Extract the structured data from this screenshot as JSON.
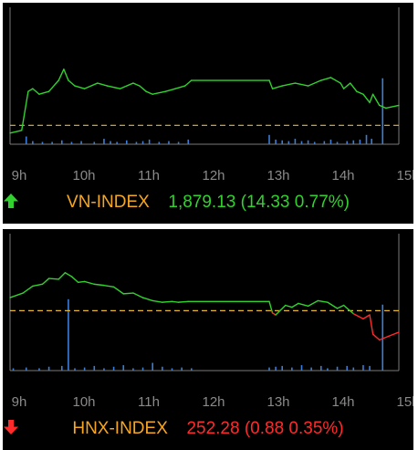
{
  "chart_data": [
    {
      "type": "line",
      "index_name": "VN-INDEX",
      "direction": "up",
      "value": "1,879.13",
      "change": "(14.33 0.77%)",
      "x_ticks": [
        "9h",
        "10h",
        "11h",
        "12h",
        "13h",
        "14h",
        "15h"
      ],
      "x_range_hours": [
        9,
        15
      ],
      "reference": 1864.8,
      "y_range": [
        1858,
        1905
      ],
      "series": [
        {
          "values": [
            [
              9.0,
              1862
            ],
            [
              9.18,
              1863
            ],
            [
              9.28,
              1877
            ],
            [
              9.35,
              1878
            ],
            [
              9.45,
              1876
            ],
            [
              9.6,
              1877
            ],
            [
              9.75,
              1881
            ],
            [
              9.83,
              1885
            ],
            [
              9.9,
              1881
            ],
            [
              10.0,
              1879
            ],
            [
              10.15,
              1878
            ],
            [
              10.35,
              1880
            ],
            [
              10.5,
              1879
            ],
            [
              10.7,
              1878
            ],
            [
              10.9,
              1880
            ],
            [
              11.0,
              1879
            ],
            [
              11.1,
              1877
            ],
            [
              11.2,
              1876
            ],
            [
              11.4,
              1877
            ],
            [
              11.55,
              1878
            ],
            [
              11.7,
              1879
            ],
            [
              11.8,
              1881
            ],
            [
              13.0,
              1881
            ],
            [
              13.05,
              1878
            ],
            [
              13.2,
              1879
            ],
            [
              13.4,
              1880
            ],
            [
              13.6,
              1879
            ],
            [
              13.8,
              1881
            ],
            [
              13.95,
              1882
            ],
            [
              14.1,
              1880
            ],
            [
              14.15,
              1878
            ],
            [
              14.25,
              1880
            ],
            [
              14.35,
              1877
            ],
            [
              14.45,
              1876
            ],
            [
              14.55,
              1873
            ],
            [
              14.6,
              1876
            ],
            [
              14.7,
              1872
            ],
            [
              14.8,
              1871
            ],
            [
              15.0,
              1872
            ]
          ]
        }
      ],
      "volume": [
        [
          9.25,
          10
        ],
        [
          9.35,
          4
        ],
        [
          9.5,
          3
        ],
        [
          9.65,
          3
        ],
        [
          9.8,
          5
        ],
        [
          9.95,
          3
        ],
        [
          10.1,
          4
        ],
        [
          10.3,
          3
        ],
        [
          10.45,
          7
        ],
        [
          10.55,
          4
        ],
        [
          10.65,
          3
        ],
        [
          10.8,
          5
        ],
        [
          10.95,
          3
        ],
        [
          11.05,
          4
        ],
        [
          11.15,
          6
        ],
        [
          11.3,
          3
        ],
        [
          11.45,
          4
        ],
        [
          11.6,
          3
        ],
        [
          11.75,
          6
        ],
        [
          13.0,
          12
        ],
        [
          13.1,
          6
        ],
        [
          13.2,
          5
        ],
        [
          13.3,
          4
        ],
        [
          13.4,
          7
        ],
        [
          13.5,
          4
        ],
        [
          13.6,
          5
        ],
        [
          13.7,
          3
        ],
        [
          13.85,
          4
        ],
        [
          13.95,
          6
        ],
        [
          14.05,
          3
        ],
        [
          14.2,
          4
        ],
        [
          14.3,
          5
        ],
        [
          14.4,
          6
        ],
        [
          14.5,
          12
        ],
        [
          14.58,
          7
        ],
        [
          14.75,
          85
        ]
      ],
      "colors": {
        "line": "#31d12e",
        "volume": "#3b7dd8",
        "reference": "#e8b830",
        "axis": "#7a7a7a"
      }
    },
    {
      "type": "line",
      "index_name": "HNX-INDEX",
      "direction": "down",
      "value": "252.28",
      "change": "(0.88 0.35%)",
      "x_ticks": [
        "9h",
        "10h",
        "11h",
        "12h",
        "13h",
        "14h",
        "15h"
      ],
      "x_range_hours": [
        9,
        15
      ],
      "reference": 253.16,
      "y_range": [
        251.6,
        255.0
      ],
      "series": [
        {
          "values": [
            [
              9.0,
              253.5
            ],
            [
              9.2,
              253.62
            ],
            [
              9.35,
              253.8
            ],
            [
              9.5,
              253.85
            ],
            [
              9.6,
              254.0
            ],
            [
              9.75,
              253.98
            ],
            [
              9.85,
              254.15
            ],
            [
              9.95,
              254.05
            ],
            [
              10.05,
              253.9
            ],
            [
              10.15,
              253.92
            ],
            [
              10.3,
              253.85
            ],
            [
              10.45,
              253.82
            ],
            [
              10.6,
              253.78
            ],
            [
              10.75,
              253.6
            ],
            [
              10.9,
              253.62
            ],
            [
              11.05,
              253.5
            ],
            [
              11.2,
              253.42
            ],
            [
              11.35,
              253.38
            ],
            [
              11.5,
              253.4
            ],
            [
              11.6,
              253.38
            ],
            [
              11.75,
              253.4
            ],
            [
              13.0,
              253.4
            ],
            [
              13.05,
              253.1
            ],
            [
              13.1,
              253.05
            ],
            [
              13.25,
              253.3
            ],
            [
              13.35,
              253.25
            ],
            [
              13.45,
              253.35
            ],
            [
              13.6,
              253.28
            ],
            [
              13.75,
              253.42
            ],
            [
              13.9,
              253.38
            ],
            [
              14.05,
              253.22
            ],
            [
              14.15,
              253.3
            ],
            [
              14.3,
              253.08
            ],
            [
              14.45,
              252.95
            ],
            [
              14.55,
              253.05
            ],
            [
              14.6,
              252.55
            ],
            [
              14.7,
              252.4
            ],
            [
              14.85,
              252.5
            ],
            [
              15.0,
              252.6
            ]
          ]
        }
      ],
      "volume": [
        [
          9.05,
          3
        ],
        [
          9.25,
          4
        ],
        [
          9.45,
          3
        ],
        [
          9.6,
          5
        ],
        [
          9.8,
          6
        ],
        [
          9.9,
          92
        ],
        [
          10.0,
          3
        ],
        [
          10.15,
          4
        ],
        [
          10.3,
          6
        ],
        [
          10.45,
          3
        ],
        [
          10.6,
          5
        ],
        [
          10.75,
          7
        ],
        [
          10.9,
          3
        ],
        [
          11.05,
          4
        ],
        [
          11.2,
          10
        ],
        [
          11.35,
          5
        ],
        [
          11.5,
          3
        ],
        [
          11.65,
          4
        ],
        [
          11.8,
          3
        ],
        [
          13.0,
          4
        ],
        [
          13.1,
          5
        ],
        [
          13.2,
          6
        ],
        [
          13.35,
          4
        ],
        [
          13.5,
          7
        ],
        [
          13.65,
          4
        ],
        [
          13.8,
          6
        ],
        [
          13.9,
          3
        ],
        [
          14.05,
          5
        ],
        [
          14.2,
          6
        ],
        [
          14.3,
          4
        ],
        [
          14.45,
          7
        ],
        [
          14.55,
          6
        ],
        [
          14.75,
          85
        ]
      ],
      "colors": {
        "line_above": "#31d12e",
        "line_below": "#ff2a2a",
        "volume": "#3b7dd8",
        "reference": "#e8b830",
        "axis": "#7a7a7a"
      }
    }
  ]
}
